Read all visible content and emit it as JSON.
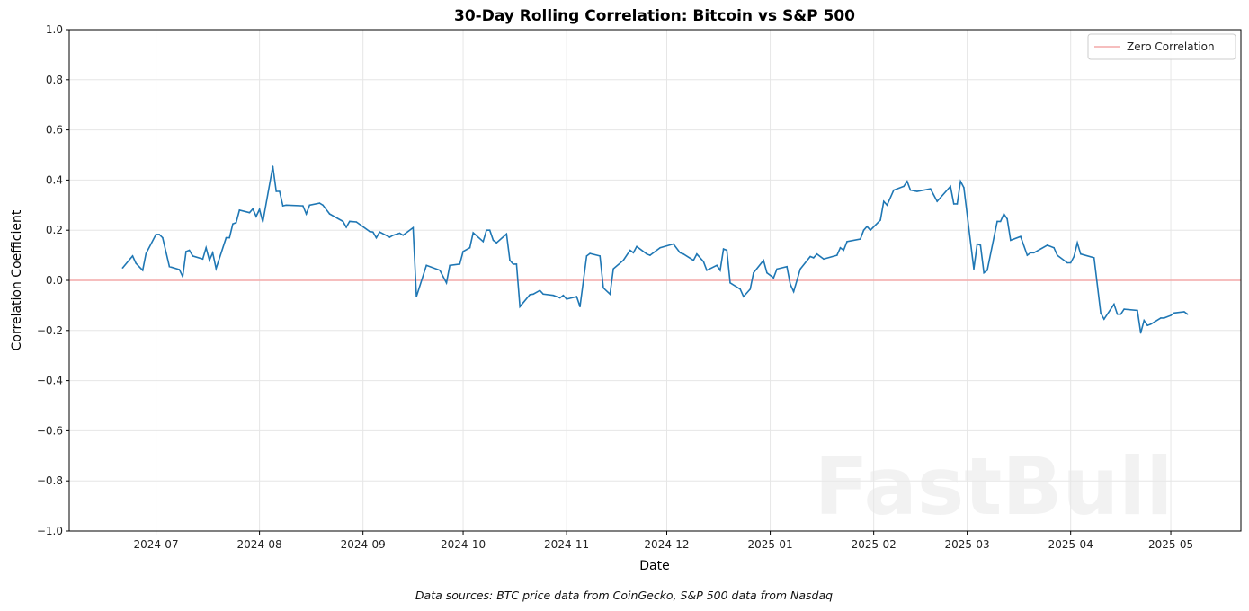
{
  "chart_data": {
    "type": "line",
    "title": "30-Day Rolling Correlation: Bitcoin vs S&P 500",
    "xlabel": "Date",
    "ylabel": "Correlation Coefficient",
    "ylim": [
      -1.0,
      1.0
    ],
    "xlim": [
      "2024-06-05",
      "2025-05-22"
    ],
    "y_ticks": [
      "−1.0",
      "−0.8",
      "−0.6",
      "−0.4",
      "−0.2",
      "0.0",
      "0.2",
      "0.4",
      "0.6",
      "0.8",
      "1.0"
    ],
    "x_ticks": [
      "2024-07",
      "2024-08",
      "2024-09",
      "2024-10",
      "2024-11",
      "2024-12",
      "2025-01",
      "2025-02",
      "2025-03",
      "2025-04",
      "2025-05"
    ],
    "grid": true,
    "legend_position": "top-right",
    "reference_line": {
      "label": "Zero Correlation",
      "y": 0,
      "color": "#f4a9a8"
    },
    "series": [
      {
        "color": "#1f77b4",
        "points": [
          [
            "2024-06-21",
            0.05
          ],
          [
            "2024-06-24",
            0.097
          ],
          [
            "2024-06-25",
            0.068
          ],
          [
            "2024-06-27",
            0.04
          ],
          [
            "2024-06-28",
            0.107
          ],
          [
            "2024-07-01",
            0.183
          ],
          [
            "2024-07-02",
            0.183
          ],
          [
            "2024-07-03",
            0.17
          ],
          [
            "2024-07-05",
            0.055
          ],
          [
            "2024-07-08",
            0.043
          ],
          [
            "2024-07-09",
            0.015
          ],
          [
            "2024-07-10",
            0.115
          ],
          [
            "2024-07-11",
            0.12
          ],
          [
            "2024-07-12",
            0.097
          ],
          [
            "2024-07-15",
            0.085
          ],
          [
            "2024-07-16",
            0.13
          ],
          [
            "2024-07-17",
            0.08
          ],
          [
            "2024-07-18",
            0.11
          ],
          [
            "2024-07-19",
            0.047
          ],
          [
            "2024-07-22",
            0.17
          ],
          [
            "2024-07-23",
            0.17
          ],
          [
            "2024-07-24",
            0.225
          ],
          [
            "2024-07-25",
            0.23
          ],
          [
            "2024-07-26",
            0.28
          ],
          [
            "2024-07-29",
            0.27
          ],
          [
            "2024-07-30",
            0.285
          ],
          [
            "2024-07-31",
            0.255
          ],
          [
            "2024-08-01",
            0.283
          ],
          [
            "2024-08-02",
            0.233
          ],
          [
            "2024-08-05",
            0.455
          ],
          [
            "2024-08-06",
            0.355
          ],
          [
            "2024-08-07",
            0.355
          ],
          [
            "2024-08-08",
            0.297
          ],
          [
            "2024-08-09",
            0.3
          ],
          [
            "2024-08-14",
            0.297
          ],
          [
            "2024-08-15",
            0.265
          ],
          [
            "2024-08-16",
            0.3
          ],
          [
            "2024-08-19",
            0.308
          ],
          [
            "2024-08-20",
            0.3
          ],
          [
            "2024-08-22",
            0.265
          ],
          [
            "2024-08-26",
            0.235
          ],
          [
            "2024-08-27",
            0.212
          ],
          [
            "2024-08-28",
            0.235
          ],
          [
            "2024-08-30",
            0.233
          ],
          [
            "2024-09-03",
            0.195
          ],
          [
            "2024-09-04",
            0.193
          ],
          [
            "2024-09-05",
            0.17
          ],
          [
            "2024-09-06",
            0.193
          ],
          [
            "2024-09-09",
            0.172
          ],
          [
            "2024-09-10",
            0.18
          ],
          [
            "2024-09-12",
            0.188
          ],
          [
            "2024-09-13",
            0.18
          ],
          [
            "2024-09-16",
            0.21
          ],
          [
            "2024-09-17",
            -0.065
          ],
          [
            "2024-09-20",
            0.06
          ],
          [
            "2024-09-24",
            0.04
          ],
          [
            "2024-09-26",
            -0.01
          ],
          [
            "2024-09-27",
            0.06
          ],
          [
            "2024-09-30",
            0.065
          ],
          [
            "2024-10-01",
            0.115
          ],
          [
            "2024-10-03",
            0.13
          ],
          [
            "2024-10-04",
            0.19
          ],
          [
            "2024-10-07",
            0.155
          ],
          [
            "2024-10-08",
            0.2
          ],
          [
            "2024-10-09",
            0.2
          ],
          [
            "2024-10-10",
            0.16
          ],
          [
            "2024-10-11",
            0.15
          ],
          [
            "2024-10-14",
            0.185
          ],
          [
            "2024-10-15",
            0.08
          ],
          [
            "2024-10-16",
            0.065
          ],
          [
            "2024-10-17",
            0.065
          ],
          [
            "2024-10-18",
            -0.105
          ],
          [
            "2024-10-21",
            -0.057
          ],
          [
            "2024-10-22",
            -0.055
          ],
          [
            "2024-10-24",
            -0.04
          ],
          [
            "2024-10-25",
            -0.055
          ],
          [
            "2024-10-28",
            -0.06
          ],
          [
            "2024-10-30",
            -0.07
          ],
          [
            "2024-10-31",
            -0.06
          ],
          [
            "2024-11-01",
            -0.075
          ],
          [
            "2024-11-04",
            -0.065
          ],
          [
            "2024-11-05",
            -0.105
          ],
          [
            "2024-11-07",
            0.097
          ],
          [
            "2024-11-08",
            0.107
          ],
          [
            "2024-11-11",
            0.097
          ],
          [
            "2024-11-12",
            -0.03
          ],
          [
            "2024-11-14",
            -0.055
          ],
          [
            "2024-11-15",
            0.046
          ],
          [
            "2024-11-18",
            0.08
          ],
          [
            "2024-11-20",
            0.12
          ],
          [
            "2024-11-21",
            0.11
          ],
          [
            "2024-11-22",
            0.135
          ],
          [
            "2024-11-25",
            0.105
          ],
          [
            "2024-11-26",
            0.1
          ],
          [
            "2024-11-29",
            0.13
          ],
          [
            "2024-12-03",
            0.145
          ],
          [
            "2024-12-05",
            0.11
          ],
          [
            "2024-12-06",
            0.105
          ],
          [
            "2024-12-09",
            0.08
          ],
          [
            "2024-12-10",
            0.105
          ],
          [
            "2024-12-12",
            0.075
          ],
          [
            "2024-12-13",
            0.04
          ],
          [
            "2024-12-16",
            0.06
          ],
          [
            "2024-12-17",
            0.04
          ],
          [
            "2024-12-18",
            0.125
          ],
          [
            "2024-12-19",
            0.12
          ],
          [
            "2024-12-20",
            -0.01
          ],
          [
            "2024-12-23",
            -0.035
          ],
          [
            "2024-12-24",
            -0.065
          ],
          [
            "2024-12-26",
            -0.035
          ],
          [
            "2024-12-27",
            0.03
          ],
          [
            "2024-12-30",
            0.08
          ],
          [
            "2024-12-31",
            0.03
          ],
          [
            "2025-01-02",
            0.01
          ],
          [
            "2025-01-03",
            0.045
          ],
          [
            "2025-01-06",
            0.055
          ],
          [
            "2025-01-07",
            -0.015
          ],
          [
            "2025-01-08",
            -0.045
          ],
          [
            "2025-01-10",
            0.045
          ],
          [
            "2025-01-13",
            0.095
          ],
          [
            "2025-01-14",
            0.09
          ],
          [
            "2025-01-15",
            0.105
          ],
          [
            "2025-01-17",
            0.085
          ],
          [
            "2025-01-21",
            0.1
          ],
          [
            "2025-01-22",
            0.13
          ],
          [
            "2025-01-23",
            0.12
          ],
          [
            "2025-01-24",
            0.155
          ],
          [
            "2025-01-28",
            0.165
          ],
          [
            "2025-01-29",
            0.2
          ],
          [
            "2025-01-30",
            0.215
          ],
          [
            "2025-01-31",
            0.2
          ],
          [
            "2025-02-03",
            0.24
          ],
          [
            "2025-02-04",
            0.315
          ],
          [
            "2025-02-05",
            0.3
          ],
          [
            "2025-02-07",
            0.36
          ],
          [
            "2025-02-10",
            0.375
          ],
          [
            "2025-02-11",
            0.395
          ],
          [
            "2025-02-12",
            0.36
          ],
          [
            "2025-02-14",
            0.355
          ],
          [
            "2025-02-18",
            0.365
          ],
          [
            "2025-02-20",
            0.315
          ],
          [
            "2025-02-24",
            0.375
          ],
          [
            "2025-02-25",
            0.305
          ],
          [
            "2025-02-26",
            0.305
          ],
          [
            "2025-02-27",
            0.395
          ],
          [
            "2025-02-28",
            0.37
          ],
          [
            "2025-03-03",
            0.045
          ],
          [
            "2025-03-04",
            0.145
          ],
          [
            "2025-03-05",
            0.14
          ],
          [
            "2025-03-06",
            0.03
          ],
          [
            "2025-03-07",
            0.04
          ],
          [
            "2025-03-10",
            0.235
          ],
          [
            "2025-03-11",
            0.235
          ],
          [
            "2025-03-12",
            0.265
          ],
          [
            "2025-03-13",
            0.245
          ],
          [
            "2025-03-14",
            0.16
          ],
          [
            "2025-03-17",
            0.175
          ],
          [
            "2025-03-19",
            0.1
          ],
          [
            "2025-03-20",
            0.11
          ],
          [
            "2025-03-21",
            0.11
          ],
          [
            "2025-03-25",
            0.14
          ],
          [
            "2025-03-27",
            0.13
          ],
          [
            "2025-03-28",
            0.1
          ],
          [
            "2025-03-31",
            0.07
          ],
          [
            "2025-04-01",
            0.07
          ],
          [
            "2025-04-02",
            0.095
          ],
          [
            "2025-04-03",
            0.15
          ],
          [
            "2025-04-04",
            0.105
          ],
          [
            "2025-04-08",
            0.09
          ],
          [
            "2025-04-10",
            -0.13
          ],
          [
            "2025-04-11",
            -0.155
          ],
          [
            "2025-04-14",
            -0.095
          ],
          [
            "2025-04-15",
            -0.135
          ],
          [
            "2025-04-16",
            -0.135
          ],
          [
            "2025-04-17",
            -0.115
          ],
          [
            "2025-04-21",
            -0.12
          ],
          [
            "2025-04-22",
            -0.21
          ],
          [
            "2025-04-23",
            -0.16
          ],
          [
            "2025-04-24",
            -0.18
          ],
          [
            "2025-04-25",
            -0.175
          ],
          [
            "2025-04-28",
            -0.15
          ],
          [
            "2025-04-29",
            -0.15
          ],
          [
            "2025-05-01",
            -0.14
          ],
          [
            "2025-05-02",
            -0.13
          ],
          [
            "2025-05-05",
            -0.125
          ],
          [
            "2025-05-06",
            -0.135
          ]
        ]
      }
    ],
    "footer": "Data sources: BTC price data from CoinGecko, S&P 500 data from Nasdaq"
  },
  "watermark": "FastBull"
}
